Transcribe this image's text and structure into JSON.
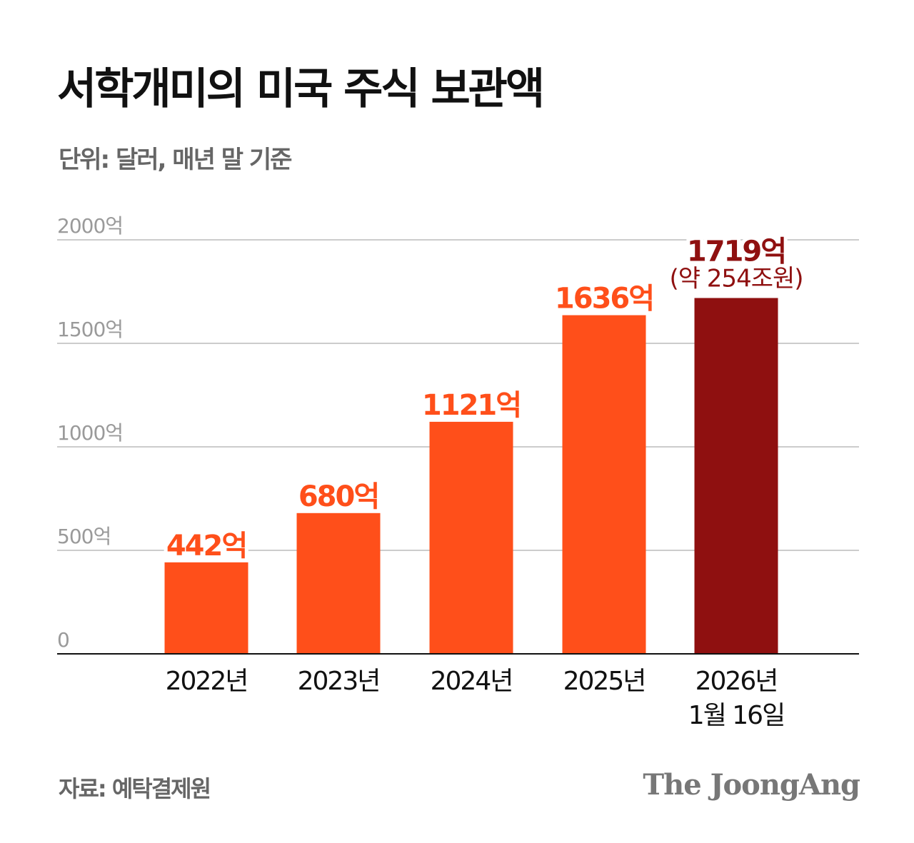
{
  "title": "서학개미의 미국 주식 보관액",
  "subtitle": "단위: 달러, 매년 말 기준",
  "source": "자료: 예탁결제원",
  "logo": "The JoongAng",
  "chart_data": {
    "type": "bar",
    "title": "서학개미의 미국 주식 보관액",
    "subtitle": "단위: 달러, 매년 말 기준",
    "categories": [
      [
        "2022년"
      ],
      [
        "2023년"
      ],
      [
        "2024년"
      ],
      [
        "2025년"
      ],
      [
        "2026년",
        "1월 16일"
      ]
    ],
    "values": [
      442,
      680,
      1121,
      1636,
      1719
    ],
    "value_labels": [
      "442억",
      "680억",
      "1121억",
      "1636억",
      "1719억"
    ],
    "extra_labels": [
      "",
      "",
      "",
      "",
      "(약 254조원)"
    ],
    "ylim": [
      0,
      2000
    ],
    "yticks": [
      0,
      500,
      1000,
      1500,
      2000
    ],
    "ytick_labels": [
      "0",
      "500억",
      "1000억",
      "1500억",
      "2000억"
    ],
    "grid": true,
    "colors": {
      "bar": "#FF4F1A",
      "highlight": "#8F1010",
      "grid": "#cccccc",
      "axis": "#111111",
      "tick": "#9a9a9a"
    },
    "highlight_index": 4
  }
}
